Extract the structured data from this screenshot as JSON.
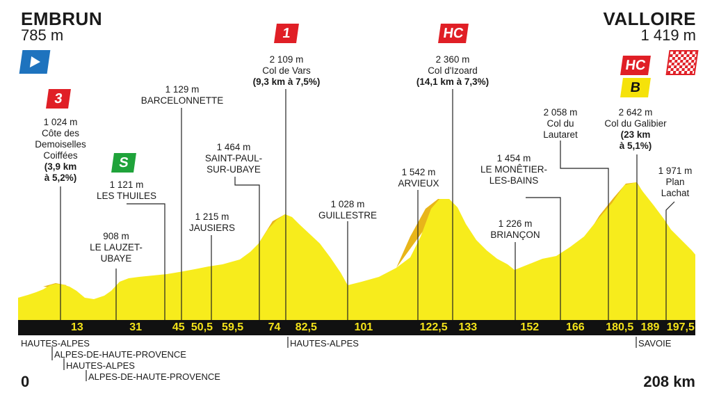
{
  "start": {
    "name": "EMBRUN",
    "altitude": "785 m",
    "km": "0"
  },
  "finish": {
    "name": "VALLOIRE",
    "altitude": "1 419 m",
    "km": "208 km"
  },
  "badges": {
    "cat3": "3",
    "cat1": "1",
    "hc_izoard": "HC",
    "hc_galibier": "HC",
    "sprint": "S",
    "bonus": "B"
  },
  "labels": {
    "demoiselles": [
      "1 024 m",
      "Côte des",
      "Demoiselles",
      "Coiffées",
      "(3,9 km",
      "à 5,2%)"
    ],
    "thuiles": [
      "1 121 m",
      "LES THUILES"
    ],
    "lauzet": [
      "908 m",
      "LE LAUZET-",
      "UBAYE"
    ],
    "barcelonnette": [
      "1 129 m",
      "BARCELONNETTE"
    ],
    "jausiers": [
      "1 215 m",
      "JAUSIERS"
    ],
    "saint_paul": [
      "1 464 m",
      "SAINT-PAUL-",
      "SUR-UBAYE"
    ],
    "vars": [
      "2 109 m",
      "Col de Vars",
      "(9,3 km à 7,5%)"
    ],
    "guillestre": [
      "1 028 m",
      "GUILLESTRE"
    ],
    "arvieux": [
      "1 542 m",
      "ARVIEUX"
    ],
    "izoard": [
      "2 360 m",
      "Col d'Izoard",
      "(14,1 km à 7,3%)"
    ],
    "briancon": [
      "1 226 m",
      "BRIANÇON"
    ],
    "monetier": [
      "1 454 m",
      "LE MONÊTIER-",
      "LES-BAINS"
    ],
    "lautaret": [
      "2 058 m",
      "Col du",
      "Lautaret"
    ],
    "galibier": [
      "2 642 m",
      "Col du Galibier",
      "(23 km",
      "à 5,1%)"
    ],
    "plan_lachat": [
      "1 971 m",
      "Plan",
      "Lachat"
    ]
  },
  "km_markers": [
    {
      "km": 13,
      "text": "13"
    },
    {
      "km": 31,
      "text": "31"
    },
    {
      "km": 45,
      "text": "45"
    },
    {
      "km": 50.5,
      "text": "50,5"
    },
    {
      "km": 59.5,
      "text": "59,5"
    },
    {
      "km": 74,
      "text": "74"
    },
    {
      "km": 82.5,
      "text": "82,5"
    },
    {
      "km": 101,
      "text": "101"
    },
    {
      "km": 122.5,
      "text": "122,5"
    },
    {
      "km": 133,
      "text": "133"
    },
    {
      "km": 152,
      "text": "152"
    },
    {
      "km": 166,
      "text": "166"
    },
    {
      "km": 180.5,
      "text": "180,5"
    },
    {
      "km": 189,
      "text": "189"
    },
    {
      "km": 197.5,
      "text": "197,5"
    }
  ],
  "regions": [
    "HAUTES-ALPES",
    "ALPES-DE-HAUTE-PROVENCE",
    "HAUTES-ALPES",
    "ALPES-DE-HAUTE-PROVENCE",
    "HAUTES-ALPES",
    "SAVOIE"
  ],
  "colors": {
    "profile": "#f7ec1c",
    "profile_dark": "#e8b51a",
    "bar": "#111111",
    "km_text": "#f3e21a",
    "red": "#e01f26",
    "green": "#1fa33a",
    "start_arrow": "#1e73be"
  }
}
